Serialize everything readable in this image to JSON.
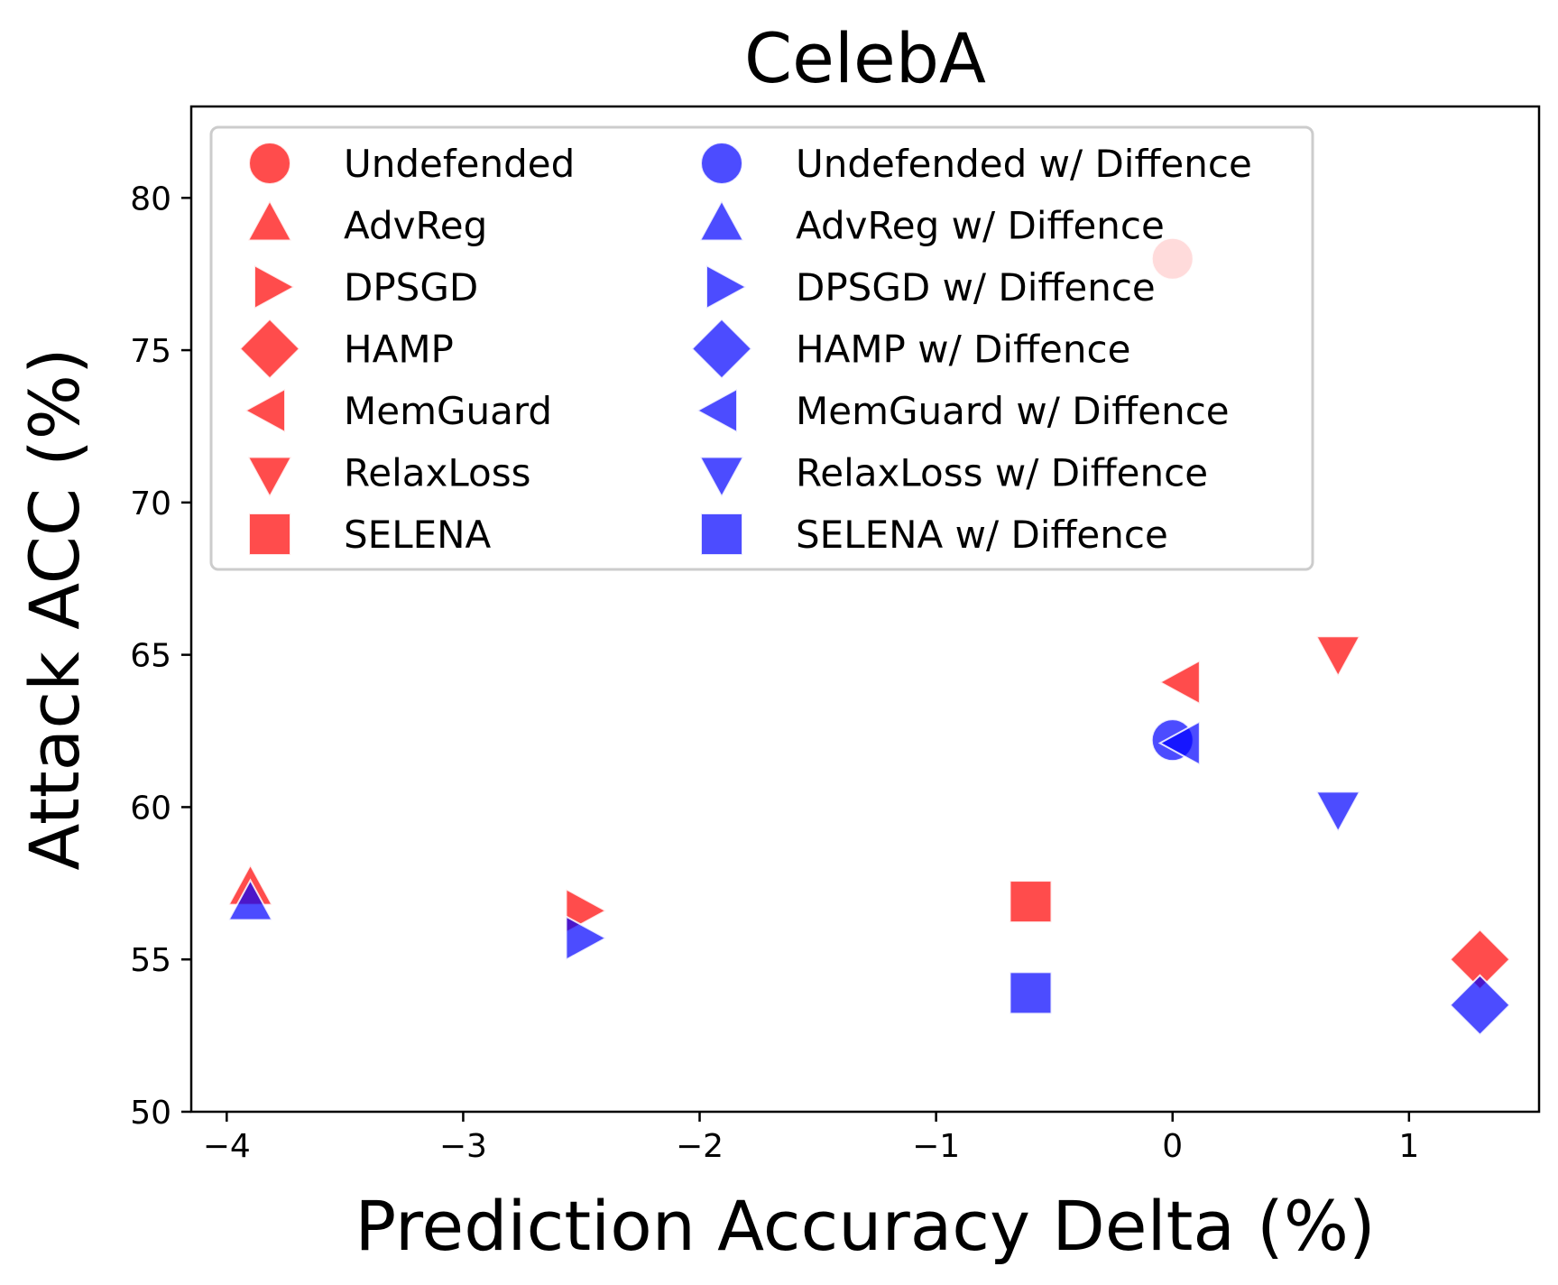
{
  "chart_data": {
    "type": "scatter",
    "title": "CelebA",
    "xlabel": "Prediction Accuracy Delta (%)",
    "ylabel": "Attack ACC (%)",
    "xlim": [
      -4.15,
      1.55
    ],
    "ylim": [
      50,
      83
    ],
    "xticks": [
      -4,
      -3,
      -2,
      -1,
      0,
      1
    ],
    "xtick_labels": [
      "−4",
      "−3",
      "−2",
      "−1",
      "0",
      "1"
    ],
    "yticks": [
      50,
      55,
      60,
      65,
      70,
      75,
      80
    ],
    "ytick_labels": [
      "50",
      "55",
      "60",
      "65",
      "70",
      "75",
      "80"
    ],
    "colors": {
      "red": "#ff0000",
      "blue": "#0000ff"
    },
    "legend_position": "upper-left, two columns",
    "series": [
      {
        "name": "Undefended",
        "marker": "circle",
        "color": "red",
        "x": 0.0,
        "y": 78.0
      },
      {
        "name": "AdvReg",
        "marker": "triangle-up",
        "color": "red",
        "x": -3.9,
        "y": 57.3
      },
      {
        "name": "DPSGD",
        "marker": "triangle-right",
        "color": "red",
        "x": -2.5,
        "y": 56.6
      },
      {
        "name": "HAMP",
        "marker": "diamond",
        "color": "red",
        "x": 1.3,
        "y": 55.0
      },
      {
        "name": "MemGuard",
        "marker": "triangle-left",
        "color": "red",
        "x": 0.05,
        "y": 64.1
      },
      {
        "name": "RelaxLoss",
        "marker": "triangle-down",
        "color": "red",
        "x": 0.7,
        "y": 65.1
      },
      {
        "name": "SELENA",
        "marker": "square",
        "color": "red",
        "x": -0.6,
        "y": 56.9
      },
      {
        "name": "Undefended w/ Diffence",
        "marker": "circle",
        "color": "blue",
        "x": 0.0,
        "y": 62.2
      },
      {
        "name": "AdvReg w/ Diffence",
        "marker": "triangle-up",
        "color": "blue",
        "x": -3.9,
        "y": 56.8
      },
      {
        "name": "DPSGD w/ Diffence",
        "marker": "triangle-right",
        "color": "blue",
        "x": -2.5,
        "y": 55.7
      },
      {
        "name": "HAMP w/ Diffence",
        "marker": "diamond",
        "color": "blue",
        "x": 1.3,
        "y": 53.5
      },
      {
        "name": "MemGuard w/ Diffence",
        "marker": "triangle-left",
        "color": "blue",
        "x": 0.05,
        "y": 62.1
      },
      {
        "name": "RelaxLoss w/ Diffence",
        "marker": "triangle-down",
        "color": "blue",
        "x": 0.7,
        "y": 60.0
      },
      {
        "name": "SELENA w/ Diffence",
        "marker": "square",
        "color": "blue",
        "x": -0.6,
        "y": 53.9
      }
    ]
  }
}
